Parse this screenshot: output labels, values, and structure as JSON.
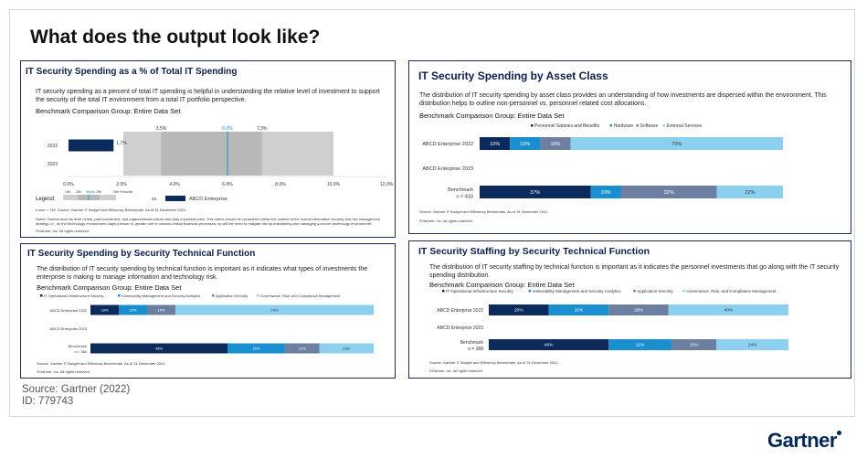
{
  "slide": {
    "title": "What does the output look like?",
    "source": "Source: Gartner (2022)",
    "id": "ID: 779743",
    "logo": "Gartner"
  },
  "colors": {
    "navy": "#0d2a5c",
    "blue": "#1a8fd0",
    "slate": "#6c7fa0",
    "light_blue": "#8cd0f0",
    "gray_band": "#cfcfcf",
    "dark_band": "#b8b8b8",
    "median": "#1a8fd0"
  },
  "panels": {
    "pct": {
      "title": "IT Security Spending as a % of Total IT Spending",
      "desc": "IT security spending as a percent of total IT spending is helpful in understanding the relative level of investment to support the security of the total IT environment from a total IT portfolio perspective.",
      "group": "Benchmark Comparison Group: Entire Data Set",
      "legend_label": "Legend:",
      "legend_vs": "vs.",
      "legend_enterprise": "ABCD Enterprise",
      "legend_ticks": [
        "10th",
        "25th",
        "Median",
        "75th",
        "90th Percentile"
      ],
      "footnote1": "n size = 748.  Source: Gartner IT Budget and Efficiency Benchmark. As of 31 December 2021.",
      "footnote2": "Notes: Factors such as level of risk, past investment, and organizational culture also play important roles. This metric should be considered within the context of the overall information security and risk management strategy i.e., as the technology environment plays a lesser or greater role in mission-critical business processes, so will the need to mitigate risk by maintaining and managing a secure technology environment.",
      "copyright": "©Gartner, Inc. All rights reserved."
    },
    "asset": {
      "title": "IT Security Spending by Asset Class",
      "desc": "The distribution of IT security spending by asset class provides an understanding of how investments are dispersed within the environment. This distribution helps to outline non-personnel vs. personnel related cost allocations.",
      "group": "Benchmark Comparison Group: Entire Data Set",
      "source": "Source: Gartner IT Budget and Efficiency Benchmark. As of 31 December 2021.",
      "copyright": "©Gartner, Inc. All rights reserved."
    },
    "function": {
      "title": "IT Security Spending by Security Technical Function",
      "desc": "The distribution of IT security spending by technical function is important as it indicates what types of investments the enterprise is making to manage information and technology risk.",
      "group": "Benchmark Comparison Group: Entire Data Set",
      "source": "Source: Gartner IT Budget and Efficiency Benchmark. As of 31 December 2021.",
      "copyright": "©Gartner, Inc. All rights reserved."
    },
    "staffing": {
      "title": "IT Security Staffing by Security Technical Function",
      "desc": "The distribution of IT security staffing by technical function is important as it indicates the personnel investments that go along with the IT security spending distribution.",
      "group": "Benchmark Comparison Group: Entire Data Set",
      "source": "Source: Gartner IT Budget and Efficiency Benchmark. As of 31 December 2021.",
      "copyright": "©Gartner, Inc. All rights reserved."
    }
  },
  "chart_data": [
    {
      "id": "pct",
      "type": "bar",
      "title": "IT Security Spending as a % of Total IT Spending",
      "categories": [
        "2022",
        "2023"
      ],
      "series": [
        {
          "name": "ABCD Enterprise",
          "values": [
            1.7,
            null
          ]
        }
      ],
      "data_labels": [
        "1.7%",
        ""
      ],
      "benchmark": {
        "p10": 3.5,
        "p25": 4.5,
        "median": 6.0,
        "p75": 7.3,
        "p90": 10.0
      },
      "benchmark_labels": [
        "3.5%",
        "6.0%",
        "7.3%"
      ],
      "xticks": [
        "0.0%",
        "2.0%",
        "4.0%",
        "6.0%",
        "8.0%",
        "10.0%",
        "12.0%"
      ],
      "xlim": [
        0,
        12
      ]
    },
    {
      "id": "asset",
      "type": "bar",
      "stacked": true,
      "title": "IT Security Spending by Asset Class",
      "legend": [
        "Personnel Salaries and Benefits",
        "Hardware",
        "Software",
        "External Services"
      ],
      "categories": [
        "ABCD Enterprise 2022",
        "ABCD Enterprise 2023",
        "Benchmark"
      ],
      "category_sub": [
        "",
        "",
        "n = 433"
      ],
      "rows": [
        [
          10,
          10,
          10,
          70
        ],
        null,
        [
          37,
          10,
          32,
          22
        ]
      ],
      "labels": [
        [
          "10%",
          "10%",
          "10%",
          "70%"
        ],
        null,
        [
          "37%",
          "10%",
          "32%",
          "22%"
        ]
      ]
    },
    {
      "id": "function",
      "type": "bar",
      "stacked": true,
      "title": "IT Security Spending by Security Technical Function",
      "legend": [
        "IT Operational Infrastructure Security",
        "Vulnerability Management and Security Analytics",
        "Application Security",
        "Governance, Risk, and Compliance Management"
      ],
      "categories": [
        "ABCD Enterprise 2022",
        "ABCD Enterprise 2023",
        "Benchmark"
      ],
      "category_sub": [
        "",
        "",
        "n = 380"
      ],
      "rows": [
        [
          10,
          10,
          10,
          70
        ],
        null,
        [
          48,
          20,
          12,
          19
        ]
      ],
      "labels": [
        [
          "10%",
          "10%",
          "10%",
          "70%"
        ],
        null,
        [
          "48%",
          "20%",
          "12%",
          "19%"
        ]
      ]
    },
    {
      "id": "staffing",
      "type": "bar",
      "stacked": true,
      "title": "IT Security Staffing by Security Technical Function",
      "legend": [
        "IT Operational Infrastructure Security",
        "Vulnerability Management and Security Analytics",
        "Application Security",
        "Governance, Risk, and Compliance Management"
      ],
      "categories": [
        "ABCD Enterprise 2022",
        "ABCD Enterprise 2023",
        "Benchmark"
      ],
      "category_sub": [
        "",
        "",
        "n = 388"
      ],
      "rows": [
        [
          20,
          20,
          20,
          40
        ],
        null,
        [
          40,
          21,
          15,
          24
        ]
      ],
      "labels": [
        [
          "20%",
          "20%",
          "20%",
          "40%"
        ],
        null,
        [
          "40%",
          "21%",
          "15%",
          "24%"
        ]
      ]
    }
  ]
}
